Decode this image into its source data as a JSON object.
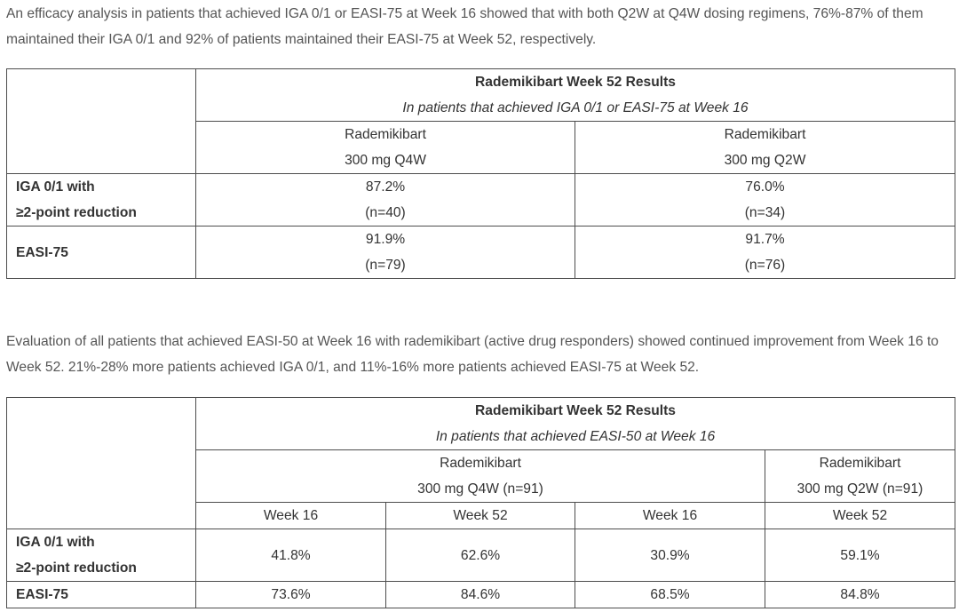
{
  "paragraphs": {
    "first": "An efficacy analysis in patients that achieved IGA 0/1 or EASI-75 at Week 16 showed that with both Q2W at Q4W dosing regimens, 76%-87% of them maintained their IGA 0/1 and 92% of patients maintained their EASI-75 at Week 52, respectively.",
    "second": "Evaluation of all patients that achieved EASI-50 at Week 16 with rademikibart (active drug responders) showed continued improvement from Week 16 to Week 52. 21%-28% more patients achieved IGA 0/1, and 11%-16% more patients achieved EASI-75 at Week 52."
  },
  "table1": {
    "title": "Rademikibart Week 52 Results",
    "subtitle": "In patients that achieved IGA 0/1 or EASI-75 at Week 16",
    "columns": [
      {
        "line1": "Rademikibart",
        "line2": "300 mg Q4W"
      },
      {
        "line1": "Rademikibart",
        "line2": "300 mg Q2W"
      }
    ],
    "rows": [
      {
        "label_line1": "IGA 0/1 with",
        "label_line2": "≥2-point reduction",
        "cells": [
          {
            "value": "87.2%",
            "n": "(n=40)"
          },
          {
            "value": "76.0%",
            "n": "(n=34)"
          }
        ]
      },
      {
        "label_line1": "EASI-75",
        "label_line2": "",
        "cells": [
          {
            "value": "91.9%",
            "n": "(n=79)"
          },
          {
            "value": "91.7%",
            "n": "(n=76)"
          }
        ]
      }
    ]
  },
  "table2": {
    "title": "Rademikibart Week 52 Results",
    "subtitle": "In patients that achieved EASI-50 at Week 16",
    "groups": [
      {
        "line1": "Rademikibart",
        "line2": "300 mg Q4W (n=91)"
      },
      {
        "line1": "Rademikibart",
        "line2": "300 mg Q2W (n=91)"
      }
    ],
    "weeks": [
      "Week 16",
      "Week 52",
      "Week 16",
      "Week 52"
    ],
    "rows": [
      {
        "label_line1": "IGA 0/1 with",
        "label_line2": "≥2-point reduction",
        "values": [
          "41.8%",
          "62.6%",
          "30.9%",
          "59.1%"
        ]
      },
      {
        "label_line1": "EASI-75",
        "label_line2": "",
        "values": [
          "73.6%",
          "84.6%",
          "68.5%",
          "84.8%"
        ]
      }
    ]
  }
}
